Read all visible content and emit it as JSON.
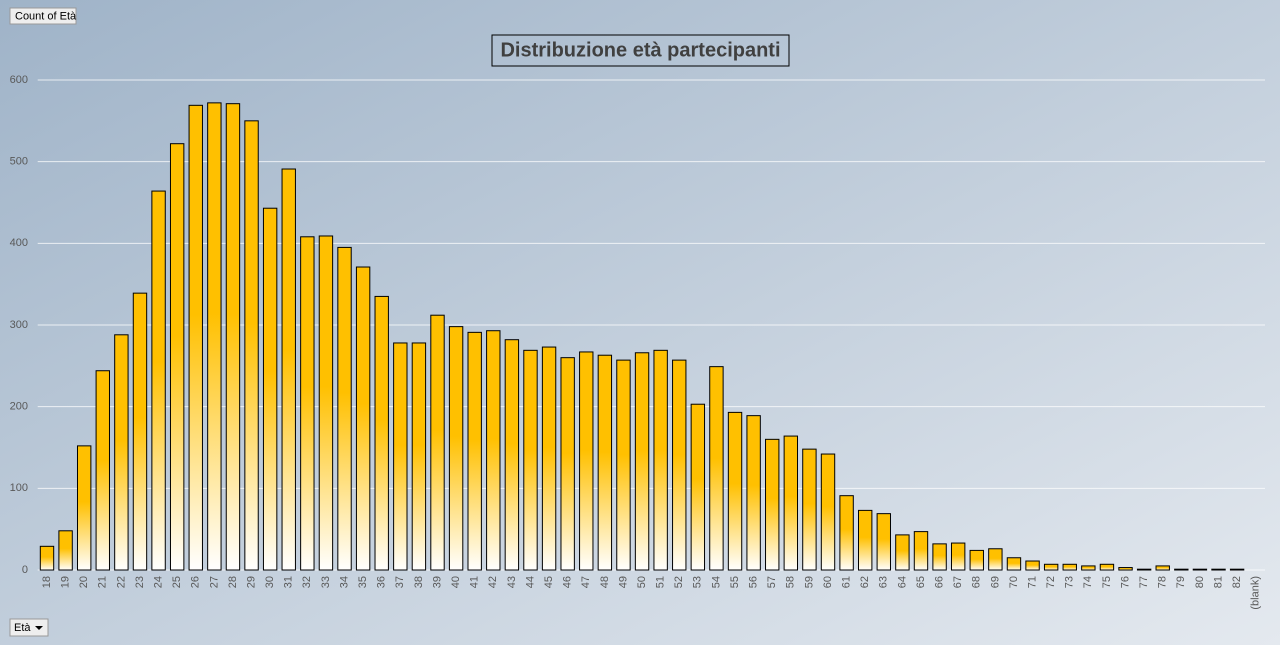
{
  "chart_data": {
    "type": "bar",
    "title": "Distribuzione età partecipanti",
    "value_field": "Count of Età",
    "axis_field": "Età",
    "categories": [
      "18",
      "19",
      "20",
      "21",
      "22",
      "23",
      "24",
      "25",
      "26",
      "27",
      "28",
      "29",
      "30",
      "31",
      "32",
      "33",
      "34",
      "35",
      "36",
      "37",
      "38",
      "39",
      "40",
      "41",
      "42",
      "43",
      "44",
      "45",
      "46",
      "47",
      "48",
      "49",
      "50",
      "51",
      "52",
      "53",
      "54",
      "55",
      "56",
      "57",
      "58",
      "59",
      "60",
      "61",
      "62",
      "63",
      "64",
      "65",
      "66",
      "67",
      "68",
      "69",
      "70",
      "71",
      "72",
      "73",
      "74",
      "75",
      "76",
      "77",
      "78",
      "79",
      "80",
      "81",
      "82",
      "(blank)"
    ],
    "values": [
      29,
      48,
      152,
      244,
      288,
      339,
      464,
      522,
      569,
      572,
      571,
      550,
      443,
      491,
      408,
      409,
      395,
      371,
      335,
      278,
      278,
      312,
      298,
      291,
      293,
      282,
      269,
      273,
      260,
      267,
      263,
      257,
      266,
      269,
      257,
      203,
      249,
      193,
      189,
      160,
      164,
      148,
      142,
      91,
      73,
      69,
      43,
      47,
      32,
      33,
      24,
      26,
      15,
      11,
      7,
      7,
      5,
      7,
      3,
      1,
      5,
      1,
      1,
      1,
      1,
      null
    ],
    "color": "#ffc000",
    "ylim": [
      0,
      600
    ],
    "yticks": [
      0,
      100,
      200,
      300,
      400,
      500,
      600
    ],
    "grid": true
  }
}
